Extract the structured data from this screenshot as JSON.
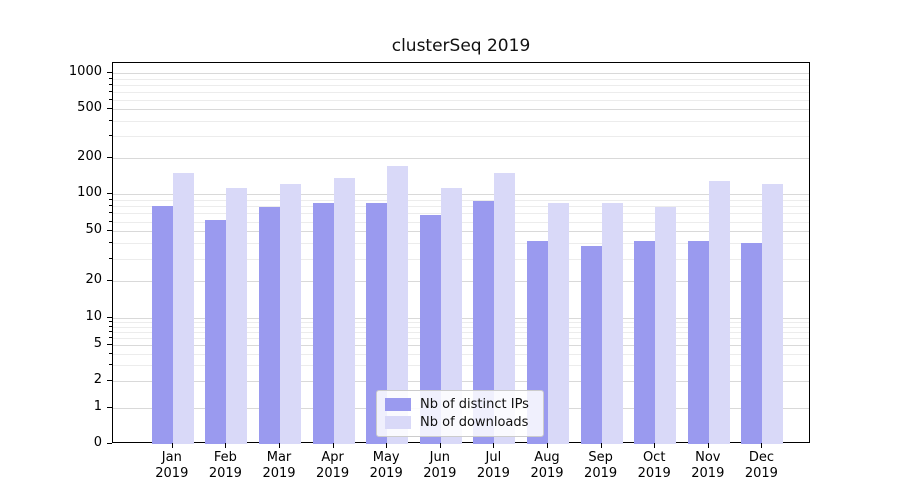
{
  "title": "clusterSeq 2019",
  "chart_data": {
    "type": "bar",
    "title": "clusterSeq 2019",
    "categories": [
      "Jan",
      "Feb",
      "Mar",
      "Apr",
      "May",
      "Jun",
      "Jul",
      "Aug",
      "Sep",
      "Oct",
      "Nov",
      "Dec"
    ],
    "category_year": "2019",
    "series": [
      {
        "name": "Nb of distinct IPs",
        "color": "#9a9aef",
        "values": [
          80,
          62,
          78,
          84,
          84,
          68,
          87,
          42,
          38,
          42,
          42,
          40
        ]
      },
      {
        "name": "Nb of downloads",
        "color": "#d9d9f8",
        "values": [
          150,
          112,
          120,
          135,
          170,
          112,
          150,
          84,
          84,
          78,
          128,
          122
        ]
      }
    ],
    "yscale": "symlog",
    "yticks": [
      0,
      1,
      2,
      5,
      10,
      20,
      50,
      100,
      200,
      500,
      1000
    ],
    "ylim": [
      0,
      1000
    ],
    "grid": true,
    "legend_position": "lower center"
  },
  "colors": {
    "major_grid": "#d9d9d9",
    "minor_grid": "#ececec",
    "axis": "#000000"
  }
}
